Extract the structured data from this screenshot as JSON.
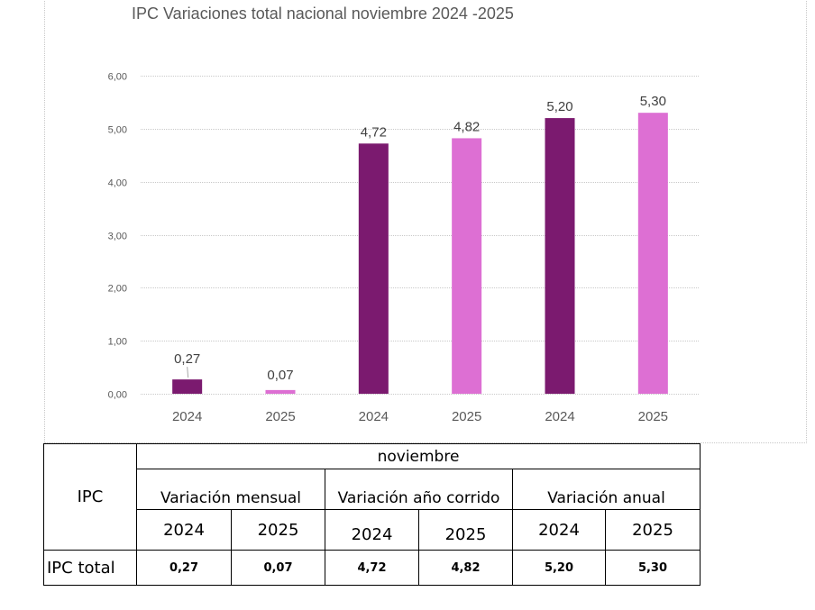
{
  "chart_data": {
    "type": "bar",
    "title": "IPC Variaciones total nacional noviembre  2024 -2025",
    "xlabel": "",
    "ylabel": "",
    "ylim": [
      0,
      6
    ],
    "yticks": [
      "0,00",
      "1,00",
      "2,00",
      "3,00",
      "4,00",
      "5,00",
      "6,00"
    ],
    "ytick_values": [
      0,
      1,
      2,
      3,
      4,
      5,
      6
    ],
    "grid": true,
    "categories": [
      "2024",
      "2025",
      "2024",
      "2025",
      "2024",
      "2025"
    ],
    "groups": [
      "Variación mensual",
      "Variación mensual",
      "Variación año corrido",
      "Variación año corrido",
      "Variación anual",
      "Variación anual"
    ],
    "values": [
      0.27,
      0.07,
      4.72,
      4.82,
      5.2,
      5.3
    ],
    "data_labels": [
      "0,27",
      "0,07",
      "4,72",
      "4,82",
      "5,20",
      "5,30"
    ],
    "bar_colors": [
      "#7b1a6f",
      "#dd6fd3",
      "#7b1a6f",
      "#dd6fd3",
      "#7b1a6f",
      "#dd6fd3"
    ]
  },
  "table": {
    "row_header": "IPC",
    "month": "noviembre",
    "groups": [
      "Variación mensual",
      "Variación año corrido",
      "Variación anual"
    ],
    "years": [
      "2024",
      "2025",
      "2024",
      "2025",
      "2024",
      "2025"
    ],
    "row_label": "IPC total",
    "values": [
      "0,27",
      "0,07",
      "4,72",
      "4,82",
      "5,20",
      "5,30"
    ]
  }
}
